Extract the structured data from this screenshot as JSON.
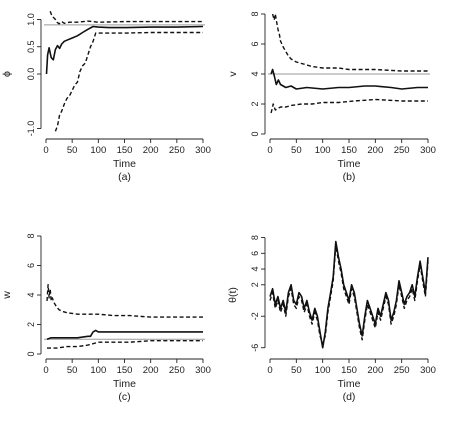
{
  "chart_data": [
    {
      "type": "line",
      "panel_label": "(a)",
      "xlabel": "Time",
      "ylabel": "ϕ",
      "xlim": [
        0,
        300
      ],
      "ylim": [
        -1.1,
        1.1
      ],
      "xticks": [
        "0",
        "50",
        "100",
        "150",
        "200",
        "250",
        "300"
      ],
      "yticks": [
        {
          "v": -1.0,
          "label": "-1.0"
        },
        {
          "v": 0.0,
          "label": "0.0"
        },
        {
          "v": 0.5,
          "label": "0.5"
        },
        {
          "v": 1.0,
          "label": "1.0"
        }
      ],
      "reference_line": 0.9,
      "series": [
        {
          "style": "solid",
          "x": [
            1,
            3,
            6,
            10,
            14,
            18,
            22,
            26,
            30,
            35,
            40,
            50,
            60,
            70,
            80,
            90,
            100,
            120,
            150,
            200,
            250,
            300
          ],
          "y": [
            0.0,
            0.35,
            0.48,
            0.3,
            0.26,
            0.45,
            0.52,
            0.47,
            0.55,
            0.6,
            0.62,
            0.66,
            0.7,
            0.76,
            0.82,
            0.87,
            0.86,
            0.85,
            0.85,
            0.86,
            0.86,
            0.87
          ]
        },
        {
          "style": "dashed",
          "x": [
            8,
            10,
            12,
            15,
            18,
            21,
            25,
            30,
            35,
            45,
            60,
            80,
            100,
            150,
            200,
            250,
            300
          ],
          "y": [
            1.15,
            1.1,
            1.05,
            1.03,
            1.0,
            0.95,
            0.92,
            0.96,
            0.93,
            0.95,
            0.95,
            0.97,
            0.95,
            0.96,
            0.96,
            0.96,
            0.96
          ]
        },
        {
          "style": "dashed",
          "x": [
            18,
            22,
            26,
            30,
            35,
            40,
            45,
            50,
            55,
            60,
            65,
            70,
            75,
            80,
            85,
            90,
            95,
            100,
            120,
            150,
            200,
            250,
            300
          ],
          "y": [
            -1.05,
            -0.95,
            -0.75,
            -0.68,
            -0.55,
            -0.45,
            -0.4,
            -0.3,
            -0.2,
            -0.15,
            0.05,
            0.15,
            0.2,
            0.35,
            0.5,
            0.6,
            0.75,
            0.75,
            0.75,
            0.75,
            0.76,
            0.76,
            0.76
          ]
        }
      ]
    },
    {
      "type": "line",
      "panel_label": "(b)",
      "xlabel": "Time",
      "ylabel": "v",
      "xlim": [
        0,
        300
      ],
      "ylim": [
        0,
        8
      ],
      "xticks": [
        "0",
        "50",
        "100",
        "150",
        "200",
        "250",
        "300"
      ],
      "yticks": [
        {
          "v": 0,
          "label": "0"
        },
        {
          "v": 2,
          "label": "2"
        },
        {
          "v": 4,
          "label": "4"
        },
        {
          "v": 6,
          "label": "6"
        },
        {
          "v": 8,
          "label": "8"
        }
      ],
      "reference_line": 4,
      "series": [
        {
          "style": "solid",
          "x": [
            2,
            5,
            8,
            12,
            16,
            20,
            30,
            40,
            50,
            70,
            100,
            130,
            150,
            180,
            200,
            230,
            250,
            280,
            300
          ],
          "y": [
            4.0,
            4.3,
            3.9,
            3.3,
            3.6,
            3.3,
            3.1,
            3.2,
            3.0,
            3.1,
            3.0,
            3.1,
            3.1,
            3.2,
            3.2,
            3.1,
            3.0,
            3.1,
            3.1
          ]
        },
        {
          "style": "dashed",
          "x": [
            5,
            8,
            10,
            12,
            15,
            18,
            20,
            25,
            30,
            35,
            40,
            50,
            60,
            70,
            80,
            100,
            130,
            150,
            200,
            250,
            300
          ],
          "y": [
            8.0,
            7.6,
            8.0,
            7.6,
            7.0,
            6.6,
            6.2,
            5.8,
            5.5,
            5.2,
            5.0,
            4.8,
            4.7,
            4.6,
            4.5,
            4.4,
            4.4,
            4.3,
            4.3,
            4.2,
            4.2
          ]
        },
        {
          "style": "dashed",
          "x": [
            2,
            6,
            10,
            15,
            20,
            30,
            40,
            60,
            80,
            100,
            130,
            160,
            200,
            250,
            300
          ],
          "y": [
            1.4,
            2.0,
            1.6,
            1.7,
            1.8,
            1.8,
            1.9,
            2.0,
            2.0,
            2.1,
            2.1,
            2.2,
            2.3,
            2.2,
            2.2
          ]
        }
      ]
    },
    {
      "type": "line",
      "panel_label": "(c)",
      "xlabel": "Time",
      "ylabel": "w",
      "xlim": [
        0,
        300
      ],
      "ylim": [
        0,
        8
      ],
      "xticks": [
        "0",
        "50",
        "100",
        "150",
        "200",
        "250",
        "300"
      ],
      "yticks": [
        {
          "v": 0,
          "label": "0"
        },
        {
          "v": 2,
          "label": "2"
        },
        {
          "v": 4,
          "label": "4"
        },
        {
          "v": 6,
          "label": "6"
        },
        {
          "v": 8,
          "label": "8"
        }
      ],
      "reference_line": 1,
      "series": [
        {
          "style": "solid",
          "x": [
            2,
            10,
            20,
            40,
            60,
            80,
            85,
            90,
            95,
            100,
            120,
            150,
            200,
            250,
            300
          ],
          "y": [
            1.0,
            1.1,
            1.1,
            1.1,
            1.1,
            1.2,
            1.2,
            1.5,
            1.6,
            1.5,
            1.5,
            1.5,
            1.5,
            1.5,
            1.5
          ]
        },
        {
          "style": "dashed",
          "x": [
            2,
            4,
            6,
            8,
            10,
            12,
            15,
            20,
            25,
            30,
            40,
            60,
            80,
            100,
            130,
            160,
            200,
            250,
            300
          ],
          "y": [
            3.6,
            4.7,
            3.8,
            4.4,
            3.6,
            3.8,
            3.5,
            3.2,
            3.0,
            2.9,
            2.8,
            2.7,
            2.7,
            2.7,
            2.6,
            2.6,
            2.5,
            2.5,
            2.5
          ]
        },
        {
          "style": "dashed",
          "x": [
            2,
            10,
            20,
            40,
            60,
            80,
            90,
            100,
            130,
            160,
            200,
            250,
            300
          ],
          "y": [
            0.4,
            0.4,
            0.4,
            0.5,
            0.5,
            0.6,
            0.7,
            0.8,
            0.8,
            0.8,
            0.9,
            0.9,
            0.9
          ]
        }
      ]
    },
    {
      "type": "line",
      "panel_label": "(d)",
      "xlabel": "Time",
      "ylabel": "θ(t)",
      "xlim": [
        0,
        300
      ],
      "ylim": [
        -6.8,
        8.2
      ],
      "xticks": [
        "0",
        "50",
        "100",
        "150",
        "200",
        "250",
        "300"
      ],
      "yticks": [
        {
          "v": -6,
          "label": "-6"
        },
        {
          "v": -2,
          "label": "-2"
        },
        {
          "v": 2,
          "label": "2"
        },
        {
          "v": 4,
          "label": "4"
        },
        {
          "v": 6,
          "label": "6"
        },
        {
          "v": 8,
          "label": "8"
        }
      ],
      "series": [
        {
          "style": "solid",
          "x": [
            0,
            5,
            10,
            15,
            20,
            25,
            30,
            35,
            40,
            45,
            50,
            55,
            60,
            65,
            70,
            75,
            80,
            85,
            90,
            95,
            100,
            105,
            110,
            115,
            120,
            125,
            130,
            135,
            140,
            145,
            150,
            155,
            160,
            165,
            170,
            175,
            180,
            185,
            190,
            195,
            200,
            205,
            210,
            215,
            220,
            225,
            230,
            235,
            240,
            245,
            250,
            255,
            260,
            265,
            270,
            275,
            280,
            285,
            290,
            295,
            300
          ],
          "y": [
            0.5,
            1.5,
            -0.5,
            0.5,
            -1.0,
            0.0,
            -1.5,
            1.0,
            2.0,
            0.0,
            -0.5,
            1.0,
            0.5,
            -1.0,
            0.0,
            -1.5,
            -2.5,
            -1.0,
            -2.0,
            -4.0,
            -6.0,
            -4.0,
            -1.0,
            1.0,
            3.0,
            7.5,
            5.5,
            4.0,
            2.0,
            1.0,
            0.0,
            2.0,
            1.0,
            -1.0,
            -3.0,
            -4.5,
            -2.0,
            0.0,
            -1.0,
            -2.0,
            -3.0,
            -1.0,
            -2.0,
            -0.5,
            1.0,
            0.0,
            -2.5,
            -1.5,
            0.0,
            2.5,
            1.0,
            -0.5,
            0.5,
            1.0,
            2.0,
            0.5,
            3.0,
            5.0,
            3.0,
            1.0,
            5.5
          ]
        },
        {
          "style": "dashed",
          "x": [
            0,
            5,
            10,
            15,
            20,
            25,
            30,
            35,
            40,
            45,
            50,
            55,
            60,
            65,
            70,
            75,
            80,
            85,
            90,
            95,
            100,
            105,
            110,
            115,
            120,
            125,
            130,
            135,
            140,
            145,
            150,
            155,
            160,
            165,
            170,
            175,
            180,
            185,
            190,
            195,
            200,
            205,
            210,
            215,
            220,
            225,
            230,
            235,
            240,
            245,
            250,
            255,
            260,
            265,
            270,
            275,
            280,
            285,
            290,
            295,
            300
          ],
          "y": [
            0.0,
            1.0,
            -1.0,
            0.0,
            -1.5,
            -0.5,
            -2.0,
            0.5,
            1.5,
            -0.5,
            -1.0,
            0.5,
            0.0,
            -1.5,
            -0.5,
            -2.0,
            -3.0,
            -1.5,
            -2.5,
            -4.5,
            -5.5,
            -4.5,
            -1.5,
            0.5,
            2.5,
            7.0,
            5.0,
            3.5,
            1.5,
            0.5,
            -0.5,
            1.5,
            0.5,
            -1.5,
            -3.5,
            -5.0,
            -2.5,
            -0.5,
            -1.5,
            -2.5,
            -3.5,
            -1.5,
            -2.5,
            -1.0,
            0.5,
            -0.5,
            -3.0,
            -2.0,
            -0.5,
            2.0,
            0.5,
            -1.0,
            0.0,
            0.5,
            1.5,
            0.0,
            2.5,
            4.5,
            2.5,
            0.5,
            5.0
          ]
        }
      ]
    }
  ]
}
